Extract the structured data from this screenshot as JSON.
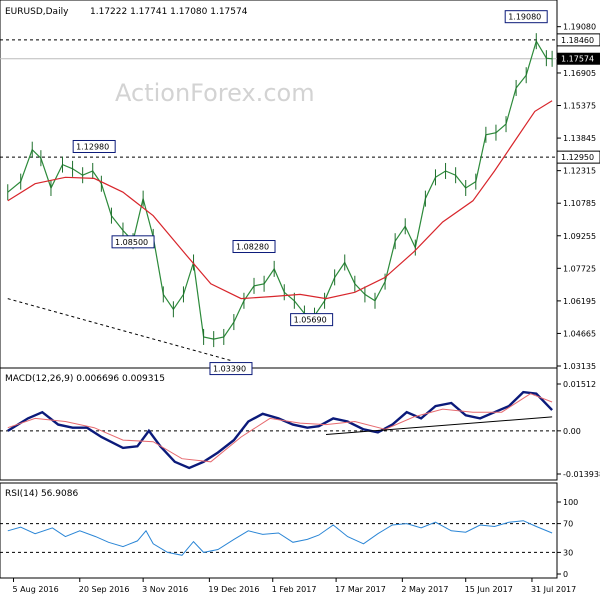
{
  "header": {
    "symbol": "EURUSD,Daily",
    "ohlc": "1.17222 1.17741 1.17080 1.17574"
  },
  "watermark": "ActionForex.com",
  "chart_data": [
    {
      "panel": "price",
      "type": "line",
      "title": "EURUSD,Daily 1.17222 1.17741 1.17080 1.17574",
      "y_ticks": [
        "1.19080",
        "1.18460",
        "1.17574",
        "1.16905",
        "1.15375",
        "1.13845",
        "1.12950",
        "1.12315",
        "1.10785",
        "1.09255",
        "1.07725",
        "1.06195",
        "1.04665",
        "1.03135"
      ],
      "ylim": [
        1.03135,
        1.193
      ],
      "x_ticks": [
        "5 Aug 2016",
        "20 Sep 2016",
        "3 Nov 2016",
        "19 Dec 2016",
        "1 Feb 2017",
        "17 Mar 2017",
        "2 May 2017",
        "15 Jun 2017",
        "31 Jul 2017"
      ],
      "horizontal_levels": [
        {
          "value": 1.1846,
          "label": "1.18460"
        },
        {
          "value": 1.1295,
          "label": "1.12950"
        },
        {
          "value": 1.17574,
          "label": "1.17574"
        }
      ],
      "annotations": [
        {
          "label": "1.19080",
          "date": "2017-07-27",
          "value": 1.1908
        },
        {
          "label": "1.12980",
          "date": "2016-09-30",
          "value": 1.1298
        },
        {
          "label": "1.08500",
          "date": "2016-10-27",
          "value": 1.085
        },
        {
          "label": "1.08280",
          "date": "2017-01-19",
          "value": 1.0828
        },
        {
          "label": "1.05690",
          "date": "2017-02-28",
          "value": 1.0569
        },
        {
          "label": "1.03390",
          "date": "2017-01-03",
          "value": 1.0339
        }
      ],
      "series": [
        {
          "style": "bars",
          "points": [
            [
              "2016-08-01",
              1.113
            ],
            [
              "2016-08-10",
              1.118
            ],
            [
              "2016-08-18",
              1.133
            ],
            [
              "2016-08-24",
              1.129
            ],
            [
              "2016-08-31",
              1.115
            ],
            [
              "2016-09-08",
              1.126
            ],
            [
              "2016-09-15",
              1.124
            ],
            [
              "2016-09-22",
              1.121
            ],
            [
              "2016-09-29",
              1.123
            ],
            [
              "2016-10-05",
              1.117
            ],
            [
              "2016-10-12",
              1.102
            ],
            [
              "2016-10-20",
              1.095
            ],
            [
              "2016-10-27",
              1.09
            ],
            [
              "2016-11-03",
              1.11
            ],
            [
              "2016-11-10",
              1.092
            ],
            [
              "2016-11-17",
              1.065
            ],
            [
              "2016-11-24",
              1.058
            ],
            [
              "2016-12-01",
              1.065
            ],
            [
              "2016-12-08",
              1.08
            ],
            [
              "2016-12-15",
              1.045
            ],
            [
              "2016-12-22",
              1.044
            ],
            [
              "2016-12-29",
              1.045
            ],
            [
              "2017-01-05",
              1.052
            ],
            [
              "2017-01-12",
              1.062
            ],
            [
              "2017-01-19",
              1.069
            ],
            [
              "2017-01-26",
              1.07
            ],
            [
              "2017-02-02",
              1.077
            ],
            [
              "2017-02-09",
              1.066
            ],
            [
              "2017-02-16",
              1.062
            ],
            [
              "2017-02-23",
              1.056
            ],
            [
              "2017-03-02",
              1.055
            ],
            [
              "2017-03-09",
              1.062
            ],
            [
              "2017-03-16",
              1.073
            ],
            [
              "2017-03-23",
              1.08
            ],
            [
              "2017-03-30",
              1.07
            ],
            [
              "2017-04-06",
              1.065
            ],
            [
              "2017-04-13",
              1.062
            ],
            [
              "2017-04-20",
              1.071
            ],
            [
              "2017-04-27",
              1.09
            ],
            [
              "2017-05-04",
              1.097
            ],
            [
              "2017-05-11",
              1.087
            ],
            [
              "2017-05-18",
              1.11
            ],
            [
              "2017-05-25",
              1.12
            ],
            [
              "2017-06-01",
              1.123
            ],
            [
              "2017-06-08",
              1.121
            ],
            [
              "2017-06-15",
              1.115
            ],
            [
              "2017-06-22",
              1.118
            ],
            [
              "2017-06-29",
              1.14
            ],
            [
              "2017-07-06",
              1.141
            ],
            [
              "2017-07-13",
              1.145
            ],
            [
              "2017-07-20",
              1.162
            ],
            [
              "2017-07-27",
              1.168
            ],
            [
              "2017-08-03",
              1.184
            ],
            [
              "2017-08-10",
              1.176
            ],
            [
              "2017-08-14",
              1.1757
            ]
          ]
        },
        {
          "style": "line",
          "color": "#d8262c",
          "points": [
            [
              "2016-08-01",
              1.109
            ],
            [
              "2016-08-20",
              1.117
            ],
            [
              "2016-09-10",
              1.12
            ],
            [
              "2016-09-30",
              1.1195
            ],
            [
              "2016-10-20",
              1.113
            ],
            [
              "2016-11-10",
              1.102
            ],
            [
              "2016-12-01",
              1.085
            ],
            [
              "2016-12-20",
              1.07
            ],
            [
              "2017-01-10",
              1.063
            ],
            [
              "2017-02-01",
              1.064
            ],
            [
              "2017-02-20",
              1.065
            ],
            [
              "2017-03-10",
              1.063
            ],
            [
              "2017-03-30",
              1.066
            ],
            [
              "2017-04-20",
              1.073
            ],
            [
              "2017-05-10",
              1.085
            ],
            [
              "2017-05-30",
              1.099
            ],
            [
              "2017-06-20",
              1.109
            ],
            [
              "2017-07-05",
              1.123
            ],
            [
              "2017-07-20",
              1.138
            ],
            [
              "2017-08-02",
              1.151
            ],
            [
              "2017-08-14",
              1.156
            ]
          ]
        }
      ],
      "trendline": {
        "from": [
          "2016-08-01",
          1.063
        ],
        "to": [
          "2017-01-03",
          1.0339
        ]
      }
    },
    {
      "panel": "macd",
      "type": "line",
      "title": "MACD(12,26,9) 0.006696 0.009315",
      "y_ticks": [
        "0.01512",
        "0.00",
        "-0.013938"
      ],
      "ylim": [
        -0.013938,
        0.01512
      ],
      "series": [
        {
          "style": "line",
          "color": "#0b1a7a",
          "points": [
            [
              "2016-08-01",
              0.0
            ],
            [
              "2016-08-15",
              0.004
            ],
            [
              "2016-08-25",
              0.006
            ],
            [
              "2016-09-05",
              0.002
            ],
            [
              "2016-09-15",
              0.001
            ],
            [
              "2016-09-25",
              0.001
            ],
            [
              "2016-10-05",
              -0.002
            ],
            [
              "2016-10-20",
              -0.0055
            ],
            [
              "2016-10-30",
              -0.005
            ],
            [
              "2016-11-07",
              0.0
            ],
            [
              "2016-11-15",
              -0.005
            ],
            [
              "2016-11-25",
              -0.01
            ],
            [
              "2016-12-05",
              -0.012
            ],
            [
              "2016-12-15",
              -0.01
            ],
            [
              "2016-12-25",
              -0.007
            ],
            [
              "2017-01-05",
              -0.003
            ],
            [
              "2017-01-15",
              0.003
            ],
            [
              "2017-01-25",
              0.0055
            ],
            [
              "2017-02-05",
              0.004
            ],
            [
              "2017-02-15",
              0.002
            ],
            [
              "2017-02-25",
              0.001
            ],
            [
              "2017-03-05",
              0.0015
            ],
            [
              "2017-03-15",
              0.004
            ],
            [
              "2017-03-25",
              0.003
            ],
            [
              "2017-04-05",
              0.0005
            ],
            [
              "2017-04-15",
              -0.0005
            ],
            [
              "2017-04-25",
              0.002
            ],
            [
              "2017-05-05",
              0.006
            ],
            [
              "2017-05-15",
              0.004
            ],
            [
              "2017-05-25",
              0.008
            ],
            [
              "2017-06-05",
              0.009
            ],
            [
              "2017-06-15",
              0.005
            ],
            [
              "2017-06-25",
              0.004
            ],
            [
              "2017-07-05",
              0.006
            ],
            [
              "2017-07-15",
              0.008
            ],
            [
              "2017-07-25",
              0.0125
            ],
            [
              "2017-08-03",
              0.012
            ],
            [
              "2017-08-14",
              0.0067
            ]
          ]
        },
        {
          "style": "line",
          "color": "#e66a6f",
          "points": [
            [
              "2016-08-01",
              0.001
            ],
            [
              "2016-08-20",
              0.004
            ],
            [
              "2016-09-10",
              0.003
            ],
            [
              "2016-09-30",
              0.001
            ],
            [
              "2016-10-20",
              -0.003
            ],
            [
              "2016-11-10",
              -0.0035
            ],
            [
              "2016-11-30",
              -0.009
            ],
            [
              "2016-12-20",
              -0.01
            ],
            [
              "2017-01-10",
              -0.002
            ],
            [
              "2017-01-30",
              0.004
            ],
            [
              "2017-02-20",
              0.0025
            ],
            [
              "2017-03-10",
              0.002
            ],
            [
              "2017-03-30",
              0.003
            ],
            [
              "2017-04-20",
              0.0005
            ],
            [
              "2017-05-10",
              0.0045
            ],
            [
              "2017-05-30",
              0.007
            ],
            [
              "2017-06-20",
              0.006
            ],
            [
              "2017-07-10",
              0.006
            ],
            [
              "2017-07-30",
              0.012
            ],
            [
              "2017-08-14",
              0.0093
            ]
          ]
        }
      ],
      "trendline": {
        "from": [
          "2017-03-10",
          -0.0012
        ],
        "to": [
          "2017-08-14",
          0.0045
        ]
      }
    },
    {
      "panel": "rsi",
      "type": "line",
      "title": "RSI(14) 56.9086",
      "y_ticks": [
        "100",
        "70",
        "30",
        "0"
      ],
      "ylim": [
        0,
        100
      ],
      "levels": [
        70,
        30
      ],
      "series": [
        {
          "style": "line",
          "color": "#2b86d6",
          "points": [
            [
              "2016-08-01",
              60
            ],
            [
              "2016-08-10",
              65
            ],
            [
              "2016-08-20",
              56
            ],
            [
              "2016-09-01",
              64
            ],
            [
              "2016-09-10",
              52
            ],
            [
              "2016-09-20",
              60
            ],
            [
              "2016-10-01",
              52
            ],
            [
              "2016-10-10",
              44
            ],
            [
              "2016-10-20",
              38
            ],
            [
              "2016-10-30",
              46
            ],
            [
              "2016-11-05",
              60
            ],
            [
              "2016-11-10",
              42
            ],
            [
              "2016-11-20",
              30
            ],
            [
              "2016-11-30",
              26
            ],
            [
              "2016-12-08",
              45
            ],
            [
              "2016-12-15",
              30
            ],
            [
              "2016-12-25",
              34
            ],
            [
              "2017-01-05",
              48
            ],
            [
              "2017-01-15",
              60
            ],
            [
              "2017-01-25",
              55
            ],
            [
              "2017-02-05",
              57
            ],
            [
              "2017-02-15",
              44
            ],
            [
              "2017-02-25",
              48
            ],
            [
              "2017-03-05",
              54
            ],
            [
              "2017-03-15",
              68
            ],
            [
              "2017-03-25",
              52
            ],
            [
              "2017-04-05",
              42
            ],
            [
              "2017-04-15",
              56
            ],
            [
              "2017-04-25",
              68
            ],
            [
              "2017-05-05",
              70
            ],
            [
              "2017-05-15",
              64
            ],
            [
              "2017-05-25",
              72
            ],
            [
              "2017-06-05",
              60
            ],
            [
              "2017-06-15",
              58
            ],
            [
              "2017-06-25",
              68
            ],
            [
              "2017-07-05",
              66
            ],
            [
              "2017-07-15",
              72
            ],
            [
              "2017-07-25",
              74
            ],
            [
              "2017-08-03",
              66
            ],
            [
              "2017-08-14",
              57
            ]
          ]
        }
      ]
    }
  ]
}
